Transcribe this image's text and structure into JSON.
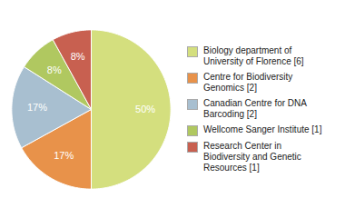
{
  "chart_data": {
    "type": "pie",
    "categories": [
      "Biology department of\nUniversity of Florence [6]",
      "Centre for Biodiversity\nGenomics [2]",
      "Canadian Centre for DNA\nBarcoding [2]",
      "Wellcome Sanger Institute [1]",
      "Research Center in\nBiodiversity and Genetic\nResources [1]"
    ],
    "values": [
      50,
      17,
      17,
      8,
      8
    ],
    "value_labels": [
      "50%",
      "17%",
      "17%",
      "8%",
      "8%"
    ],
    "colors": [
      "#d4df7e",
      "#e8924a",
      "#a8bfd0",
      "#b0c860",
      "#c86050"
    ],
    "data_labels": true,
    "legend": "right"
  }
}
